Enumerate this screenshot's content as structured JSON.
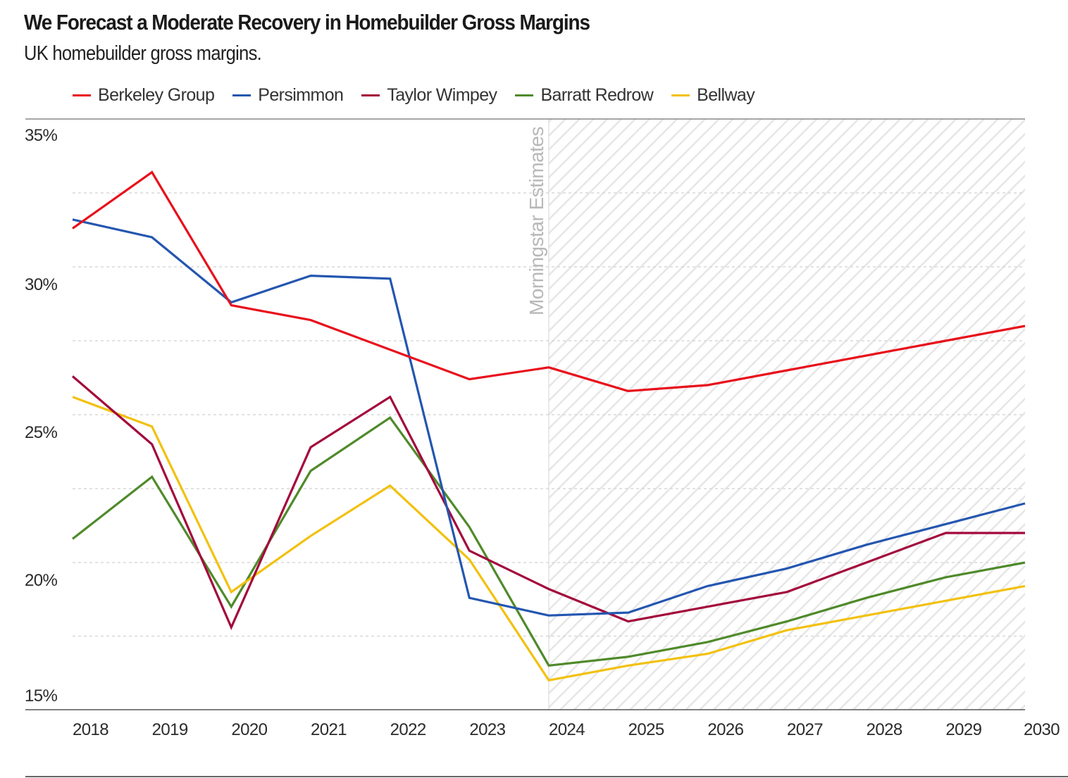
{
  "chart_data": {
    "type": "line",
    "title": "We Forecast a Moderate Recovery in Homebuilder Gross Margins",
    "subtitle": "UK homebuilder gross margins.",
    "x": [
      2018,
      2019,
      2020,
      2021,
      2022,
      2023,
      2024,
      2025,
      2026,
      2027,
      2028,
      2029,
      2030
    ],
    "x_tick_labels": [
      "2018",
      "2019",
      "2020",
      "2021",
      "2022",
      "2023",
      "2024",
      "2025",
      "2026",
      "2027",
      "2028",
      "2029",
      "2030"
    ],
    "y_tick_labels": [
      "35%",
      "30%",
      "25%",
      "20%",
      "15%"
    ],
    "ylim": [
      15,
      35
    ],
    "grid": true,
    "legend_position": "top-left",
    "forecast_start": 2024,
    "forecast_label": "Morningstar Estimates",
    "series": [
      {
        "name": "Berkeley Group",
        "color": "#e8101b",
        "values": [
          31.3,
          33.2,
          28.7,
          28.2,
          27.2,
          26.2,
          26.6,
          25.8,
          26.0,
          26.5,
          27.0,
          27.5,
          28.0
        ]
      },
      {
        "name": "Persimmon",
        "color": "#2456b0",
        "values": [
          31.6,
          31.0,
          28.8,
          29.7,
          29.6,
          18.8,
          18.2,
          18.3,
          19.2,
          19.8,
          20.6,
          21.3,
          22.0
        ]
      },
      {
        "name": "Taylor Wimpey",
        "color": "#a3093b",
        "values": [
          26.3,
          24.0,
          17.8,
          23.9,
          25.6,
          20.4,
          19.1,
          18.0,
          18.5,
          19.0,
          20.0,
          21.0,
          21.0
        ]
      },
      {
        "name": "Barratt Redrow",
        "color": "#4f8a2a",
        "values": [
          20.8,
          22.9,
          18.5,
          23.1,
          24.9,
          21.2,
          16.5,
          16.8,
          17.3,
          18.0,
          18.8,
          19.5,
          20.0
        ]
      },
      {
        "name": "Bellway",
        "color": "#f2c10e",
        "values": [
          25.6,
          24.6,
          19.0,
          20.9,
          22.6,
          20.1,
          16.0,
          16.5,
          16.9,
          17.7,
          18.2,
          18.7,
          19.2
        ]
      }
    ]
  }
}
